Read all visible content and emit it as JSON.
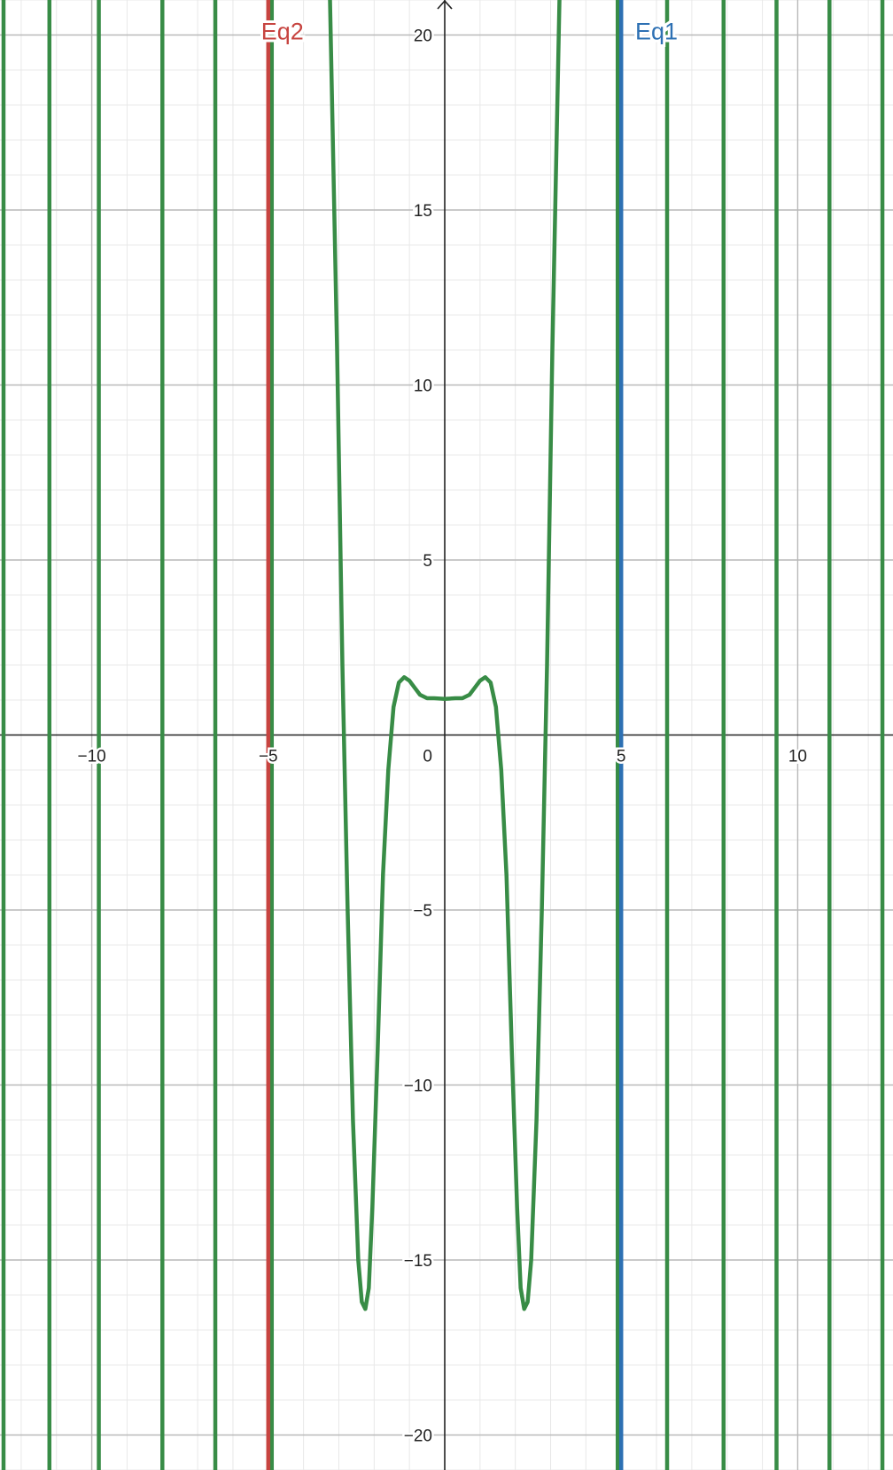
{
  "chart_data": {
    "type": "line",
    "title": "",
    "xlabel": "",
    "ylabel": "",
    "xlim": [
      -12.6,
      12.7
    ],
    "ylim": [
      -21.0,
      21.0
    ],
    "grid": {
      "major": 5,
      "minor": 1,
      "shown": true
    },
    "x_tick_labels": [
      {
        "value": -10,
        "label": "−10"
      },
      {
        "value": -5,
        "label": "−5"
      },
      {
        "value": 0,
        "label": "0"
      },
      {
        "value": 5,
        "label": "5"
      },
      {
        "value": 10,
        "label": "10"
      }
    ],
    "y_tick_labels": [
      {
        "value": 20,
        "label": "20"
      },
      {
        "value": 15,
        "label": "15"
      },
      {
        "value": 10,
        "label": "10"
      },
      {
        "value": 5,
        "label": "5"
      },
      {
        "value": -5,
        "label": "−5"
      },
      {
        "value": -10,
        "label": "−10"
      },
      {
        "value": -15,
        "label": "−15"
      },
      {
        "value": -20,
        "label": "−20"
      }
    ],
    "series": [
      {
        "name": "Eq1",
        "color": "#2d70b3",
        "kind": "vertical-line",
        "x": 5,
        "label_anchor": {
          "x": 6.0,
          "y": 20.0
        }
      },
      {
        "name": "Eq2",
        "color": "#c74440",
        "kind": "vertical-line",
        "x": -5,
        "label_anchor": {
          "x": -4.6,
          "y": 20.0
        }
      },
      {
        "name": "",
        "color": "#388c46",
        "kind": "curve",
        "points": [
          [
            -3.25,
            21
          ],
          [
            -3.05,
            11
          ],
          [
            -2.9,
            2
          ],
          [
            -2.75,
            -5
          ],
          [
            -2.6,
            -11
          ],
          [
            -2.45,
            -15
          ],
          [
            -2.35,
            -16.2
          ],
          [
            -2.25,
            -16.4
          ],
          [
            -2.15,
            -15.8
          ],
          [
            -2.05,
            -13.5
          ],
          [
            -1.9,
            -9
          ],
          [
            -1.75,
            -4
          ],
          [
            -1.6,
            -1
          ],
          [
            -1.45,
            0.8
          ],
          [
            -1.3,
            1.5
          ],
          [
            -1.15,
            1.65
          ],
          [
            -1.0,
            1.55
          ],
          [
            -0.85,
            1.35
          ],
          [
            -0.7,
            1.15
          ],
          [
            -0.5,
            1.05
          ],
          [
            -0.3,
            1.05
          ],
          [
            0.0,
            1.03
          ],
          [
            0.3,
            1.05
          ],
          [
            0.5,
            1.05
          ],
          [
            0.7,
            1.15
          ],
          [
            0.85,
            1.35
          ],
          [
            1.0,
            1.55
          ],
          [
            1.15,
            1.65
          ],
          [
            1.3,
            1.5
          ],
          [
            1.45,
            0.8
          ],
          [
            1.6,
            -1
          ],
          [
            1.75,
            -4
          ],
          [
            1.9,
            -9
          ],
          [
            2.05,
            -13.5
          ],
          [
            2.15,
            -15.8
          ],
          [
            2.25,
            -16.4
          ],
          [
            2.35,
            -16.2
          ],
          [
            2.45,
            -15
          ],
          [
            2.6,
            -11
          ],
          [
            2.75,
            -5
          ],
          [
            2.9,
            2
          ],
          [
            3.05,
            11
          ],
          [
            3.25,
            21
          ]
        ],
        "near_vertical_x": [
          -12.5,
          -11.2,
          -9.8,
          -8.0,
          -6.5,
          -4.9,
          4.9,
          6.3,
          7.9,
          9.4,
          10.9,
          12.4
        ]
      }
    ]
  },
  "axes": {
    "arrow_glyph": "↑"
  }
}
